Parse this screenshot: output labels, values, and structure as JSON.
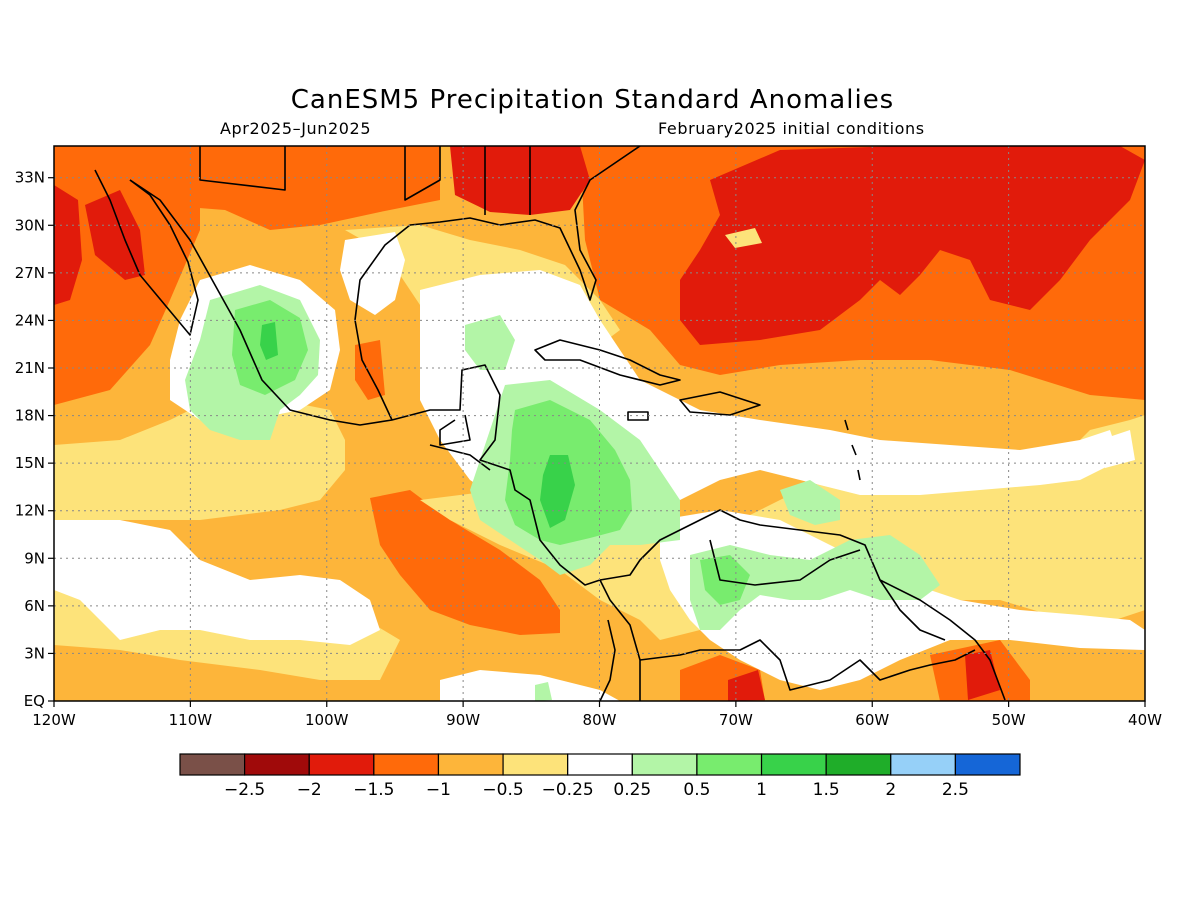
{
  "title": "CanESM5 Precipitation Standard Anomalies",
  "period": "Apr2025–Jun2025",
  "initial_conditions": "February2025 initial conditions",
  "axes": {
    "lon_labels": [
      "120W",
      "110W",
      "100W",
      "90W",
      "80W",
      "70W",
      "60W",
      "50W",
      "40W"
    ],
    "lat_labels": [
      "EQ",
      "3N",
      "6N",
      "9N",
      "12N",
      "15N",
      "18N",
      "21N",
      "24N",
      "27N",
      "30N",
      "33N"
    ],
    "lon_range": [
      -120,
      -40
    ],
    "lat_range": [
      0,
      35
    ],
    "grid": "dotted"
  },
  "colorbar": {
    "labels": [
      "−2.5",
      "−2",
      "−1.5",
      "−1",
      "−0.5",
      "−0.25",
      "0.25",
      "0.5",
      "1",
      "1.5",
      "2",
      "2.5"
    ],
    "colors": [
      "#7a5048",
      "#a00a0a",
      "#e11b0b",
      "#ff6a0a",
      "#fdb53a",
      "#fde37a",
      "#ffffff",
      "#b3f5a7",
      "#78ec6e",
      "#38d24a",
      "#1fad29",
      "#96d0f8",
      "#1566d7"
    ]
  },
  "map_regions": {
    "base": "#fdb53a",
    "colors": {
      "m25": "#fde37a",
      "m1": "#ff6a0a",
      "m15": "#e11b0b",
      "p25": "#ffffff",
      "p5": "#b3f5a7",
      "p1": "#78ec6e",
      "p15": "#38d24a"
    }
  }
}
